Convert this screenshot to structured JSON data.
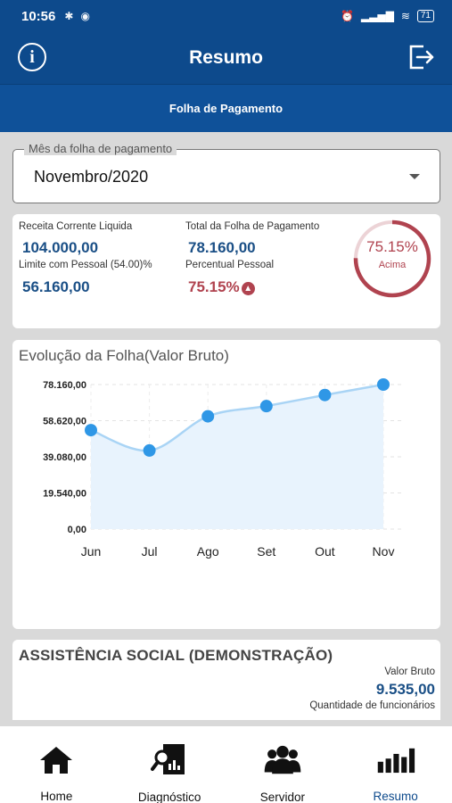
{
  "status_bar": {
    "time": "10:56",
    "battery": "71"
  },
  "app_bar": {
    "title": "Resumo",
    "info_icon": "info-icon",
    "logout_icon": "logout-icon"
  },
  "tab": {
    "label": "Folha de Pagamento"
  },
  "month_select": {
    "label": "Mês da folha de pagamento",
    "value": "Novembro/2020"
  },
  "summary": {
    "receita_label": "Receita Corrente Liquida",
    "receita_value": "104.000,00",
    "total_label": "Total da Folha de Pagamento",
    "total_value": "78.160,00",
    "limite_label": "Limite com Pessoal (54.00)%",
    "limite_value": "56.160,00",
    "percentual_label": "Percentual Pessoal",
    "percentual_value": "75.15%",
    "gauge_value": "75.15%",
    "gauge_fraction": 0.7515,
    "gauge_status": "Acima",
    "colors": {
      "blue": "#1a4f86",
      "red": "#b0434f"
    }
  },
  "chart_data": {
    "type": "area",
    "title": "Evolução da Folha(Valor Bruto)",
    "categories": [
      "Jun",
      "Jul",
      "Ago",
      "Set",
      "Out",
      "Nov"
    ],
    "values": [
      53500,
      42500,
      61000,
      66500,
      72500,
      78160
    ],
    "y_ticks": [
      "78.160,00",
      "58.620,00",
      "39.080,00",
      "19.540,00",
      "0,00"
    ],
    "y_tick_values": [
      78160,
      58620,
      39080,
      19540,
      0
    ],
    "ylim": [
      0,
      78160
    ],
    "grid": true,
    "line_color": "#a9d4f5",
    "fill_color": "#e8f3fd",
    "point_color": "#2f97e6"
  },
  "social_card": {
    "title": "ASSISTÊNCIA SOCIAL (DEMONSTRAÇÃO)",
    "valor_label": "Valor Bruto",
    "valor_value": "9.535,00",
    "quantidade_label": "Quantidade de funcionários"
  },
  "bottom_nav": {
    "items": [
      {
        "label": "Home",
        "icon": "home-icon"
      },
      {
        "label": "Diagnóstico",
        "icon": "diagnostic-icon"
      },
      {
        "label": "Servidor",
        "icon": "people-icon"
      },
      {
        "label": "Resumo",
        "icon": "bar-chart-icon"
      }
    ],
    "active_color": "#0d4a8c"
  }
}
